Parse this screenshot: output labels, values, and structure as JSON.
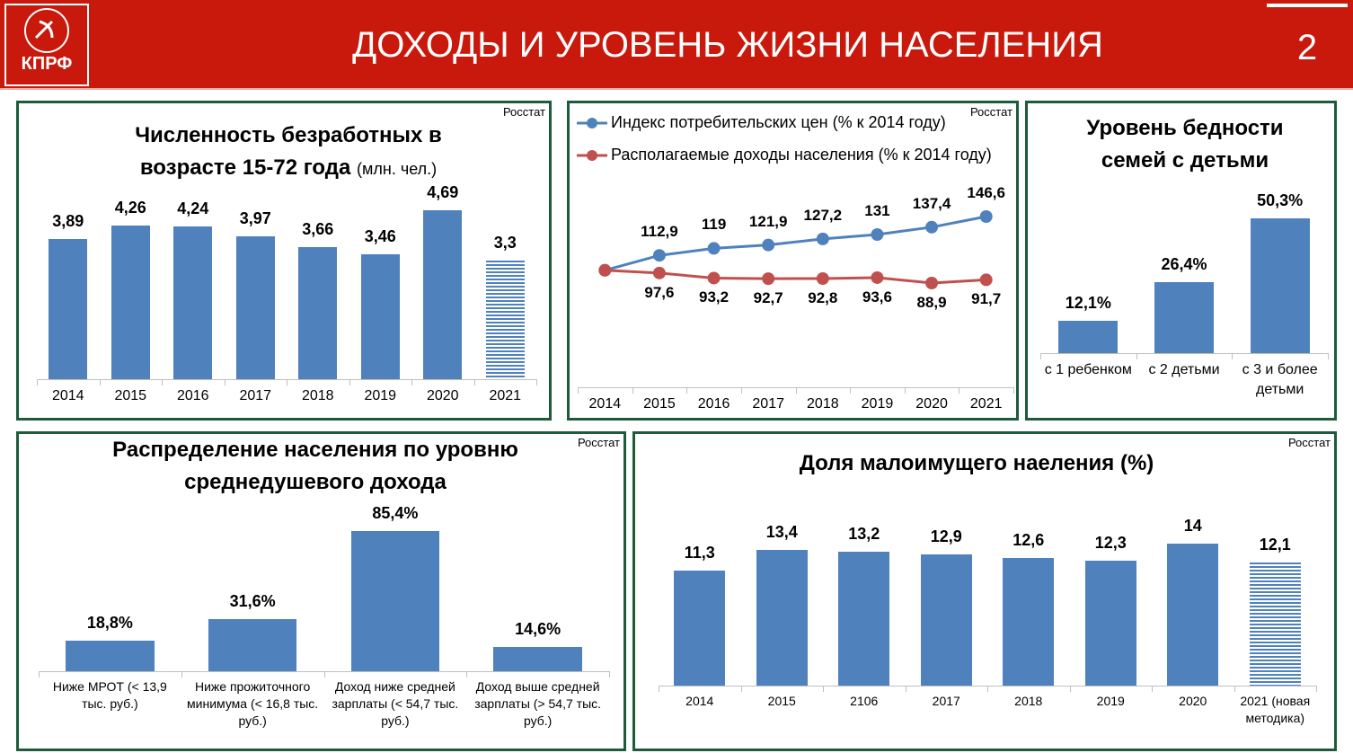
{
  "header": {
    "logo": "КПРФ",
    "title": "ДОХОДЫ И УРОВЕНЬ ЖИЗНИ НАСЕЛЕНИЯ",
    "page": "2"
  },
  "chart_data": [
    {
      "type": "bar",
      "title": "Численность безработных в возрасте 15-72 года",
      "subtitle": "(млн. чел.)",
      "source": "Росстат",
      "categories": [
        "2014",
        "2015",
        "2016",
        "2017",
        "2018",
        "2019",
        "2020",
        "2021"
      ],
      "values": [
        3.89,
        4.26,
        4.24,
        3.97,
        3.66,
        3.46,
        4.69,
        3.3
      ],
      "value_labels": [
        "3,89",
        "4,26",
        "4,24",
        "3,97",
        "3,66",
        "3,46",
        "4,69",
        "3,3"
      ],
      "hatched": [
        false,
        false,
        false,
        false,
        false,
        false,
        false,
        true
      ],
      "color": "#4f81bd"
    },
    {
      "type": "line",
      "source": "Росстат",
      "categories": [
        "2014",
        "2015",
        "2016",
        "2017",
        "2018",
        "2019",
        "2020",
        "2021"
      ],
      "series": [
        {
          "name": "Индекс потребительских цен (% к 2014 году)",
          "color": "#4f81bd",
          "values": [
            100,
            112.9,
            119,
            121.9,
            127.2,
            131,
            137.4,
            146.6
          ],
          "value_labels": [
            null,
            "112,9",
            "119",
            "121,9",
            "127,2",
            "131",
            "137,4",
            "146,6"
          ]
        },
        {
          "name": "Располагаемые доходы населения (% к 2014 году)",
          "color": "#c0504d",
          "values": [
            100,
            97.6,
            93.2,
            92.7,
            92.8,
            93.6,
            88.9,
            91.7
          ],
          "value_labels": [
            null,
            "97,6",
            "93,2",
            "92,7",
            "92,8",
            "93,6",
            "88,9",
            "91,7"
          ]
        }
      ]
    },
    {
      "type": "bar",
      "title": "Уровень бедности семей с детьми",
      "categories": [
        "с 1 ребенком",
        "с 2 детьми",
        "с 3 и более детьми"
      ],
      "values": [
        12.1,
        26.4,
        50.3
      ],
      "value_labels": [
        "12,1%",
        "26,4%",
        "50,3%"
      ],
      "color": "#4f81bd"
    },
    {
      "type": "bar",
      "title": "Распределение населения по уровню среднедушевого  дохода",
      "source": "Росстат",
      "categories": [
        "Ниже МРОТ (< 13,9 тыс. руб.)",
        "Ниже прожиточного минимума (< 16,8 тыс. руб.)",
        "Доход ниже средней зарплаты (< 54,7 тыс. руб.)",
        "Доход выше средней зарплаты (> 54,7 тыс. руб.)"
      ],
      "values": [
        18.8,
        31.6,
        85.4,
        14.6
      ],
      "value_labels": [
        "18,8%",
        "31,6%",
        "85,4%",
        "14,6%"
      ],
      "color": "#4f81bd"
    },
    {
      "type": "bar",
      "title": "Доля малоимущего наеления (%)",
      "source": "Росстат",
      "categories": [
        "2014",
        "2015",
        "2106",
        "2017",
        "2018",
        "2019",
        "2020",
        "2021 (новая методика)"
      ],
      "values": [
        11.3,
        13.4,
        13.2,
        12.9,
        12.6,
        12.3,
        14,
        12.1
      ],
      "value_labels": [
        "11,3",
        "13,4",
        "13,2",
        "12,9",
        "12,6",
        "12,3",
        "14",
        "12,1"
      ],
      "hatched": [
        false,
        false,
        false,
        false,
        false,
        false,
        false,
        true
      ],
      "color": "#4f81bd"
    }
  ]
}
